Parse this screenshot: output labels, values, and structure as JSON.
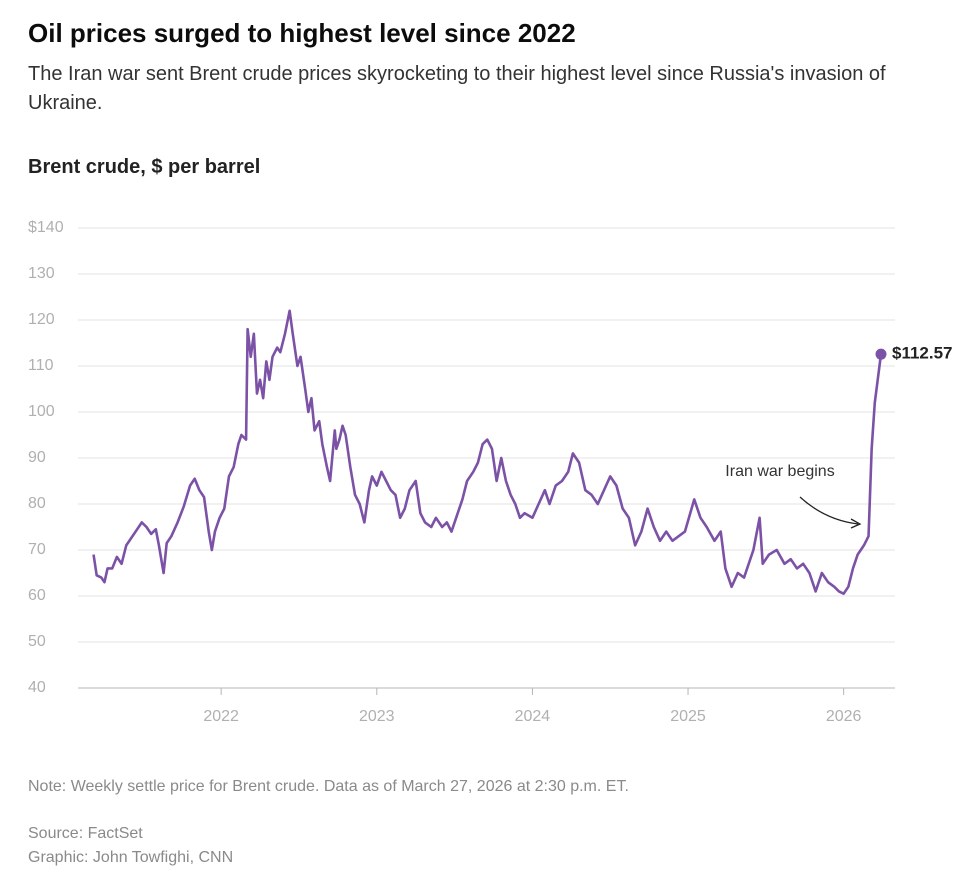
{
  "chart_data": {
    "type": "line",
    "title": "Oil prices surged to highest level since 2022",
    "subtitle": "The Iran war sent Brent crude prices skyrocketing to their highest level since Russia's invasion of Ukraine.",
    "y_label": "Brent crude, $ per barrel",
    "annotation": "Iran war begins",
    "note": "Note: Weekly settle price for Brent crude. Data as of March 27, 2026 at 2:30 p.m. ET.",
    "source": "Source: FactSet",
    "credit": "Graphic: John Towfighi, CNN",
    "color": "#7b52a6",
    "grid": true,
    "xlim": [
      2021.08,
      2026.33
    ],
    "xticks": [
      2022,
      2023,
      2024,
      2025,
      2026
    ],
    "ylim": [
      40,
      140
    ],
    "yticks": [
      40,
      50,
      60,
      70,
      80,
      90,
      100,
      110,
      120,
      130,
      {
        "value": 140,
        "label": "$140"
      }
    ],
    "x": [
      2021.18,
      2021.2,
      2021.23,
      2021.25,
      2021.27,
      2021.3,
      2021.33,
      2021.36,
      2021.39,
      2021.42,
      2021.46,
      2021.49,
      2021.52,
      2021.55,
      2021.58,
      2021.6,
      2021.63,
      2021.65,
      2021.68,
      2021.72,
      2021.76,
      2021.8,
      2021.83,
      2021.86,
      2021.89,
      2021.92,
      2021.94,
      2021.96,
      2021.99,
      2022.02,
      2022.05,
      2022.08,
      2022.11,
      2022.13,
      2022.16,
      2022.17,
      2022.19,
      2022.21,
      2022.23,
      2022.25,
      2022.27,
      2022.29,
      2022.31,
      2022.33,
      2022.36,
      2022.38,
      2022.41,
      2022.44,
      2022.46,
      2022.49,
      2022.51,
      2022.54,
      2022.56,
      2022.58,
      2022.6,
      2022.63,
      2022.65,
      2022.68,
      2022.7,
      2022.73,
      2022.74,
      2022.76,
      2022.78,
      2022.8,
      2022.83,
      2022.86,
      2022.89,
      2022.92,
      2022.95,
      2022.97,
      2023.0,
      2023.03,
      2023.06,
      2023.09,
      2023.12,
      2023.15,
      2023.18,
      2023.21,
      2023.25,
      2023.28,
      2023.31,
      2023.35,
      2023.38,
      2023.42,
      2023.45,
      2023.48,
      2023.52,
      2023.55,
      2023.58,
      2023.62,
      2023.65,
      2023.68,
      2023.71,
      2023.74,
      2023.77,
      2023.8,
      2023.83,
      2023.86,
      2023.89,
      2023.92,
      2023.95,
      2024.0,
      2024.04,
      2024.08,
      2024.11,
      2024.15,
      2024.19,
      2024.23,
      2024.26,
      2024.3,
      2024.34,
      2024.38,
      2024.42,
      2024.46,
      2024.5,
      2024.54,
      2024.58,
      2024.62,
      2024.66,
      2024.7,
      2024.74,
      2024.78,
      2024.82,
      2024.86,
      2024.9,
      2024.94,
      2024.98,
      2025.04,
      2025.08,
      2025.12,
      2025.17,
      2025.21,
      2025.24,
      2025.28,
      2025.32,
      2025.36,
      2025.42,
      2025.46,
      2025.48,
      2025.52,
      2025.57,
      2025.62,
      2025.66,
      2025.7,
      2025.74,
      2025.78,
      2025.82,
      2025.86,
      2025.9,
      2025.94,
      2025.97,
      2026.0,
      2026.03,
      2026.06,
      2026.09,
      2026.13,
      2026.16,
      2026.18,
      2026.2,
      2026.24
    ],
    "values": [
      69,
      64.5,
      64,
      63,
      66,
      66,
      68.5,
      67,
      71,
      72.5,
      74.5,
      76,
      75,
      73.5,
      74.5,
      71,
      65,
      71.5,
      73,
      76,
      79.5,
      84,
      85.5,
      83,
      81.5,
      74,
      70,
      74,
      77,
      79,
      86,
      88,
      93,
      95,
      94,
      118,
      112,
      117,
      104,
      107,
      103,
      111,
      107,
      112,
      114,
      113,
      117,
      122,
      117,
      110,
      112,
      105,
      100,
      103,
      96,
      98,
      93,
      88,
      85,
      96,
      92,
      94,
      97,
      95,
      88,
      82,
      80,
      76,
      83,
      86,
      84,
      87,
      85,
      83,
      82,
      77,
      79,
      83,
      85,
      78,
      76,
      75,
      77,
      75,
      76,
      74,
      78,
      81,
      85,
      87,
      89,
      93,
      94,
      92,
      85,
      90,
      85,
      82,
      80,
      77,
      78,
      77,
      80,
      83,
      80,
      84,
      85,
      87,
      91,
      89,
      83,
      82,
      80,
      83,
      86,
      84,
      79,
      77,
      71,
      74,
      79,
      75,
      72,
      74,
      72,
      73,
      74,
      81,
      77,
      75,
      72,
      74,
      66,
      62,
      65,
      64,
      70,
      77,
      67,
      69,
      70,
      67,
      68,
      66,
      67,
      65,
      61,
      65,
      63,
      62,
      61,
      60.5,
      62,
      66,
      69,
      71,
      73,
      92,
      102,
      112.57
    ],
    "value_labels": [
      null,
      null,
      null,
      null,
      null,
      null,
      null,
      null,
      null,
      null,
      null,
      null,
      null,
      null,
      null,
      null,
      null,
      null,
      null,
      null,
      null,
      null,
      null,
      null,
      null,
      null,
      null,
      null,
      null,
      null,
      null,
      null,
      null,
      null,
      null,
      null,
      null,
      null,
      null,
      null,
      null,
      null,
      null,
      null,
      null,
      null,
      null,
      null,
      null,
      null,
      null,
      null,
      null,
      null,
      null,
      null,
      null,
      null,
      null,
      null,
      null,
      null,
      null,
      null,
      null,
      null,
      null,
      null,
      null,
      null,
      null,
      null,
      null,
      null,
      null,
      null,
      null,
      null,
      null,
      null,
      null,
      null,
      null,
      null,
      null,
      null,
      null,
      null,
      null,
      null,
      null,
      null,
      null,
      null,
      null,
      null,
      null,
      null,
      null,
      null,
      null,
      null,
      null,
      null,
      null,
      null,
      null,
      null,
      null,
      null,
      null,
      null,
      null,
      null,
      null,
      null,
      null,
      null,
      null,
      null,
      null,
      null,
      null,
      null,
      null,
      null,
      null,
      null,
      null,
      null,
      null,
      null,
      null,
      null,
      null,
      null,
      null,
      null,
      null,
      null,
      null,
      null,
      null,
      null,
      null,
      null,
      null,
      null,
      null,
      null,
      null,
      null,
      null,
      null,
      null,
      null,
      null,
      null,
      null,
      "$112.57"
    ]
  }
}
